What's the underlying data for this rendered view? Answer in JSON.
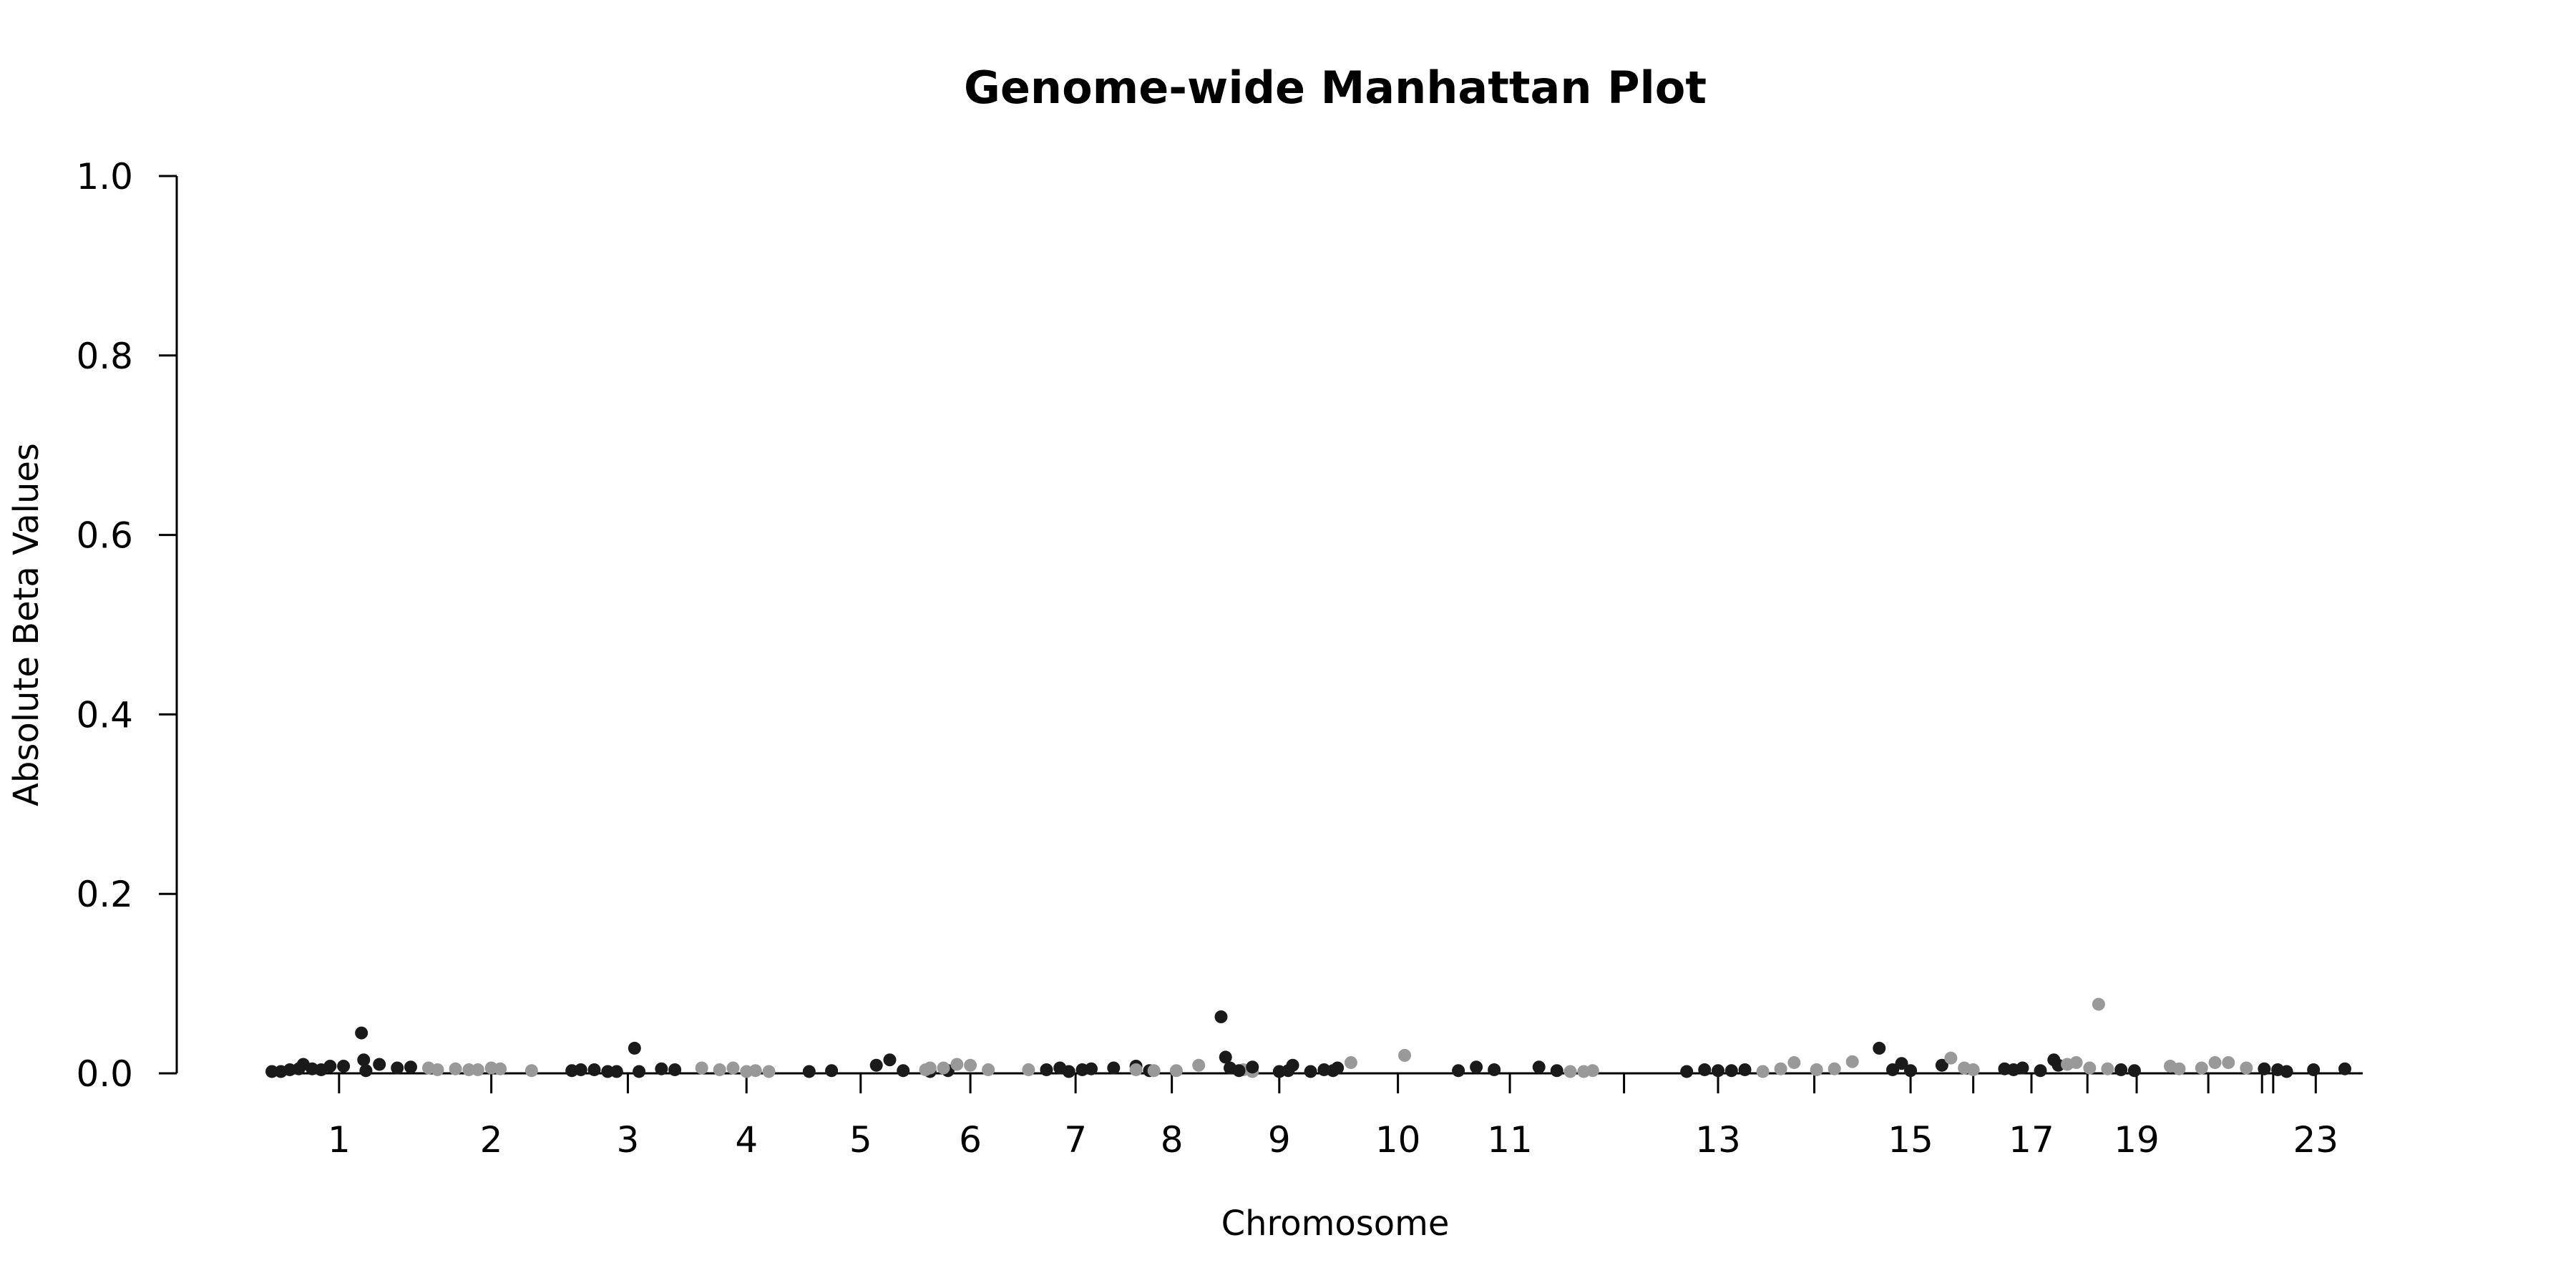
{
  "chart_data": {
    "type": "scatter",
    "title": "Genome-wide Manhattan Plot",
    "xlabel": "Chromosome",
    "ylabel": "Absolute Beta Values",
    "ylim": [
      0,
      1.0
    ],
    "y_ticks": [
      "0.0",
      "0.2",
      "0.4",
      "0.6",
      "0.8",
      "1.0"
    ],
    "y_tick_values": [
      0,
      0.2,
      0.4,
      0.6,
      0.8,
      1.0
    ],
    "x_ticks": [
      "1",
      "2",
      "3",
      "4",
      "5",
      "6",
      "7",
      "8",
      "9",
      "10",
      "11",
      "13",
      "15",
      "17",
      "19",
      "23"
    ],
    "x_tick_values": [
      1,
      2,
      3,
      4,
      5,
      6,
      7,
      8,
      9,
      10,
      11,
      13,
      15,
      17,
      19,
      23
    ],
    "grid": false,
    "legend": "none",
    "colors": {
      "odd": "#1a1a1a",
      "even": "#999999"
    },
    "series": [
      {
        "chromosome": 1,
        "color": "odd",
        "points": [
          [
            0.2,
            0.002
          ],
          [
            0.4,
            0.002
          ],
          [
            0.6,
            0.004
          ],
          [
            0.8,
            0.005
          ],
          [
            0.9,
            0.01
          ],
          [
            1.1,
            0.005
          ],
          [
            1.3,
            0.004
          ],
          [
            1.5,
            0.008
          ],
          [
            1.8,
            0.008
          ],
          [
            2.2,
            0.045
          ],
          [
            2.25,
            0.015
          ],
          [
            2.3,
            0.003
          ],
          [
            2.6,
            0.01
          ],
          [
            3.0,
            0.006
          ],
          [
            3.3,
            0.007
          ]
        ]
      },
      {
        "chromosome": 2,
        "color": "even",
        "points": [
          [
            0.3,
            0.006
          ],
          [
            0.5,
            0.004
          ],
          [
            0.9,
            0.005
          ],
          [
            1.2,
            0.004
          ],
          [
            1.4,
            0.004
          ],
          [
            1.7,
            0.006
          ],
          [
            1.9,
            0.005
          ],
          [
            2.6,
            0.003
          ]
        ]
      },
      {
        "chromosome": 3,
        "color": "odd",
        "points": [
          [
            0.1,
            0.003
          ],
          [
            0.3,
            0.004
          ],
          [
            0.6,
            0.004
          ],
          [
            0.9,
            0.002
          ],
          [
            1.1,
            0.002
          ],
          [
            1.5,
            0.028
          ],
          [
            1.6,
            0.002
          ],
          [
            2.1,
            0.005
          ],
          [
            2.4,
            0.004
          ]
        ]
      },
      {
        "chromosome": 4,
        "color": "even",
        "points": [
          [
            0.3,
            0.006
          ],
          [
            0.7,
            0.004
          ],
          [
            1.0,
            0.006
          ],
          [
            1.3,
            0.002
          ],
          [
            1.5,
            0.003
          ],
          [
            1.8,
            0.002
          ]
        ]
      },
      {
        "chromosome": 5,
        "color": "odd",
        "points": [
          [
            0.1,
            0.002
          ],
          [
            0.6,
            0.003
          ],
          [
            1.6,
            0.009
          ],
          [
            1.9,
            0.015
          ],
          [
            2.2,
            0.003
          ],
          [
            2.8,
            0.002
          ],
          [
            3.2,
            0.003
          ]
        ]
      },
      {
        "chromosome": 6,
        "color": "even",
        "points": [
          [
            0.2,
            0.004
          ],
          [
            0.3,
            0.006
          ],
          [
            0.6,
            0.006
          ],
          [
            0.9,
            0.01
          ],
          [
            1.2,
            0.009
          ],
          [
            1.6,
            0.004
          ],
          [
            2.5,
            0.004
          ]
        ]
      },
      {
        "chromosome": 7,
        "color": "odd",
        "points": [
          [
            0.5,
            0.004
          ],
          [
            0.8,
            0.006
          ],
          [
            1.0,
            0.002
          ],
          [
            1.3,
            0.004
          ],
          [
            1.5,
            0.005
          ],
          [
            2.0,
            0.006
          ],
          [
            2.5,
            0.008
          ],
          [
            2.8,
            0.003
          ]
        ]
      },
      {
        "chromosome": 8,
        "color": "even",
        "points": [
          [
            0.2,
            0.004
          ],
          [
            0.6,
            0.003
          ],
          [
            1.1,
            0.003
          ],
          [
            1.6,
            0.009
          ],
          [
            2.6,
            0.004
          ],
          [
            2.8,
            0.002
          ]
        ]
      },
      {
        "chromosome": 9,
        "color": "odd",
        "points": [
          [
            0.1,
            0.063
          ],
          [
            0.2,
            0.018
          ],
          [
            0.3,
            0.006
          ],
          [
            0.5,
            0.003
          ],
          [
            0.8,
            0.007
          ],
          [
            1.4,
            0.002
          ],
          [
            1.6,
            0.003
          ],
          [
            1.7,
            0.009
          ],
          [
            2.1,
            0.002
          ],
          [
            2.4,
            0.004
          ],
          [
            2.6,
            0.003
          ],
          [
            2.7,
            0.006
          ]
        ]
      },
      {
        "chromosome": 10,
        "color": "even",
        "points": [
          [
            0.2,
            0.012
          ],
          [
            1.4,
            0.02
          ]
        ]
      },
      {
        "chromosome": 11,
        "color": "odd",
        "points": [
          [
            0.1,
            0.003
          ],
          [
            0.5,
            0.007
          ],
          [
            0.9,
            0.004
          ],
          [
            1.9,
            0.007
          ],
          [
            2.3,
            0.003
          ]
        ]
      },
      {
        "chromosome": 12,
        "color": "even",
        "points": [
          [
            0.1,
            0.002
          ],
          [
            0.4,
            0.002
          ],
          [
            0.6,
            0.003
          ]
        ]
      },
      {
        "chromosome": 13,
        "color": "odd",
        "points": [
          [
            0.1,
            0.002
          ],
          [
            0.5,
            0.004
          ],
          [
            0.8,
            0.003
          ],
          [
            1.1,
            0.003
          ],
          [
            1.4,
            0.004
          ]
        ]
      },
      {
        "chromosome": 14,
        "color": "even",
        "points": [
          [
            0.2,
            0.002
          ],
          [
            0.6,
            0.005
          ],
          [
            0.9,
            0.012
          ],
          [
            1.4,
            0.004
          ],
          [
            1.8,
            0.005
          ],
          [
            2.2,
            0.013
          ]
        ]
      },
      {
        "chromosome": 15,
        "color": "odd",
        "points": [
          [
            0.1,
            0.028
          ],
          [
            0.4,
            0.004
          ],
          [
            0.6,
            0.011
          ],
          [
            0.8,
            0.003
          ],
          [
            1.5,
            0.009
          ]
        ]
      },
      {
        "chromosome": 16,
        "color": "even",
        "points": [
          [
            0.1,
            0.017
          ],
          [
            0.4,
            0.006
          ],
          [
            0.6,
            0.004
          ]
        ]
      },
      {
        "chromosome": 17,
        "color": "odd",
        "points": [
          [
            0.1,
            0.005
          ],
          [
            0.3,
            0.004
          ],
          [
            0.5,
            0.006
          ],
          [
            0.9,
            0.003
          ],
          [
            1.2,
            0.015
          ],
          [
            1.3,
            0.009
          ]
        ]
      },
      {
        "chromosome": 18,
        "color": "even",
        "points": [
          [
            0.1,
            0.01
          ],
          [
            0.3,
            0.012
          ],
          [
            0.6,
            0.006
          ],
          [
            0.8,
            0.077
          ],
          [
            1.0,
            0.005
          ]
        ]
      },
      {
        "chromosome": 19,
        "color": "odd",
        "points": [
          [
            0.2,
            0.004
          ],
          [
            0.5,
            0.003
          ]
        ]
      },
      {
        "chromosome": 20,
        "color": "even",
        "points": [
          [
            0.2,
            0.008
          ],
          [
            0.4,
            0.005
          ],
          [
            0.9,
            0.006
          ],
          [
            1.2,
            0.012
          ],
          [
            1.5,
            0.012
          ],
          [
            1.9,
            0.006
          ]
        ]
      },
      {
        "chromosome": 21,
        "color": "odd",
        "points": [
          [
            0.2,
            0.005
          ],
          [
            0.5,
            0.004
          ],
          [
            0.7,
            0.002
          ]
        ]
      },
      {
        "chromosome": 22,
        "color": "even",
        "points": []
      },
      {
        "chromosome": 23,
        "color": "odd",
        "points": [
          [
            0.8,
            0.004
          ],
          [
            1.5,
            0.005
          ]
        ]
      }
    ]
  }
}
